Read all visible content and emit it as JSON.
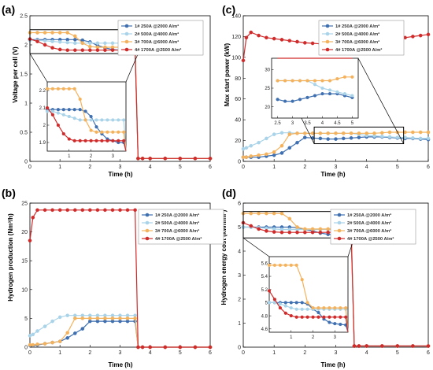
{
  "panels": [
    {
      "letter": "(a)",
      "xlabel": "Time (h)",
      "ylabel": "Voltage per cell  (V)"
    },
    {
      "letter": "(c)",
      "xlabel": "Time (h)",
      "ylabel": "Max start power (kW)"
    },
    {
      "letter": "(b)",
      "xlabel": "Time (h)",
      "ylabel": "Hydrogen production (Nm³/h)"
    },
    {
      "letter": "(d)",
      "xlabel": "Time (h)",
      "ylabel": "Hydrogen energy cost (kWh/m³)"
    }
  ],
  "legend": [
    {
      "label": "1# 250A @2000 A/m²",
      "color": "#3e6fb0"
    },
    {
      "label": "2# 500A @4000 A/m²",
      "color": "#a9d3e8"
    },
    {
      "label": "3# 700A @6000 A/m²",
      "color": "#f5b25c"
    },
    {
      "label": "4# 1700A @2500 A/m²",
      "color": "#d12a2a"
    }
  ],
  "chart_data": [
    {
      "type": "line",
      "panel": "a",
      "xlabel": "Time (h)",
      "ylabel": "Voltage per cell  (V)",
      "xlim": [
        0,
        6
      ],
      "ylim": [
        0,
        2.5
      ],
      "xticks": [
        0,
        1,
        2,
        3,
        4,
        5,
        6
      ],
      "yticks": [
        0,
        0.5,
        1,
        1.5,
        2,
        2.5
      ],
      "x": [
        0,
        0.25,
        0.5,
        0.75,
        1,
        1.25,
        1.5,
        1.75,
        2,
        2.25,
        2.5,
        2.75,
        3,
        3.25,
        3.5,
        3.6,
        3.75,
        4,
        4.5,
        5,
        5.5,
        6
      ],
      "series": [
        {
          "name": "1# 250A @2000 A/m²",
          "values": [
            2.09,
            2.09,
            2.09,
            2.09,
            2.09,
            2.09,
            2.09,
            2.08,
            2.05,
            1.99,
            1.95,
            1.92,
            1.91,
            1.9,
            1.9,
            0.05,
            0.05,
            0.05,
            0.05,
            0.05,
            0.05,
            0.05
          ]
        },
        {
          "name": "2# 500A @4000 A/m²",
          "values": [
            2.08,
            2.08,
            2.07,
            2.06,
            2.05,
            2.04,
            2.03,
            2.03,
            2.03,
            2.03,
            2.03,
            2.03,
            2.03,
            2.03,
            2.03,
            0.05,
            0.05,
            0.05,
            0.05,
            0.05,
            0.05,
            0.05
          ]
        },
        {
          "name": "3# 700A @6000 A/m²",
          "values": [
            2.21,
            2.21,
            2.21,
            2.21,
            2.21,
            2.21,
            2.15,
            2.03,
            1.97,
            1.96,
            1.96,
            1.96,
            1.96,
            1.96,
            1.96,
            0.05,
            0.05,
            0.05,
            0.05,
            0.05,
            0.05,
            0.05
          ]
        },
        {
          "name": "4# 1700A @2500 A/m²",
          "values": [
            2.1,
            2.06,
            2.0,
            1.95,
            1.92,
            1.91,
            1.91,
            1.91,
            1.91,
            1.91,
            1.91,
            1.91,
            1.91,
            1.91,
            1.91,
            0.05,
            0.05,
            0.05,
            0.05,
            0.05,
            0.05,
            0.05
          ]
        }
      ],
      "inset": {
        "xlim": [
          0,
          3.6
        ],
        "ylim": [
          1.85,
          2.25
        ],
        "xticks": [
          1,
          2,
          3
        ],
        "yticks": [
          1.9,
          2,
          2.1,
          2.2
        ]
      }
    },
    {
      "type": "line",
      "panel": "c",
      "xlabel": "Time (h)",
      "ylabel": "Max start power (kW)",
      "xlim": [
        0,
        6
      ],
      "ylim": [
        0,
        140
      ],
      "xticks": [
        0,
        1,
        2,
        3,
        4,
        5,
        6
      ],
      "yticks": [
        0,
        20,
        40,
        60,
        80,
        100,
        120,
        140
      ],
      "x": [
        0,
        0.1,
        0.25,
        0.5,
        0.75,
        1,
        1.25,
        1.5,
        1.75,
        2,
        2.25,
        2.5,
        2.75,
        3,
        3.25,
        3.5,
        3.75,
        4,
        4.25,
        4.5,
        4.75,
        5,
        5.25,
        5.5,
        5.75,
        6
      ],
      "series": [
        {
          "name": "1# 250A @2000 A/m²",
          "values": [
            4,
            4,
            4,
            4,
            5,
            6,
            8,
            13,
            18,
            23,
            22.5,
            22,
            21.5,
            21.5,
            22,
            22.5,
            23,
            23.5,
            23.5,
            23.5,
            23,
            22.5,
            22,
            22,
            21.5,
            21
          ]
        },
        {
          "name": "2# 500A @4000 A/m²",
          "values": [
            12,
            13,
            15,
            18,
            22,
            26,
            27.5,
            27.5,
            27,
            27,
            27,
            27,
            27,
            27,
            27,
            27,
            26,
            25,
            24.5,
            24,
            23.5,
            23,
            23,
            22.5,
            22,
            22
          ]
        },
        {
          "name": "3# 700A @6000 A/m²",
          "values": [
            4,
            4,
            5,
            6,
            7,
            9,
            15,
            26,
            27,
            27,
            27,
            27,
            27,
            27,
            27,
            27,
            27,
            27,
            27,
            27.5,
            28,
            28,
            28,
            28,
            28,
            28
          ]
        },
        {
          "name": "4# 1700A @2500 A/m²",
          "values": [
            97,
            119,
            124,
            121,
            119,
            118,
            117,
            116,
            115,
            114,
            113.5,
            113,
            113,
            113,
            113,
            113,
            113.5,
            114,
            115,
            116,
            117,
            118,
            119,
            120,
            121,
            122
          ]
        }
      ],
      "inset": {
        "xlim": [
          2.3,
          5.2
        ],
        "ylim": [
          17,
          33
        ],
        "xticks": [
          2.5,
          3,
          3.5,
          4,
          4.5,
          5
        ],
        "yticks": [
          20,
          25,
          30
        ]
      }
    },
    {
      "type": "line",
      "panel": "b",
      "xlabel": "Time (h)",
      "ylabel": "Hydrogen production (Nm³/h)",
      "xlim": [
        0,
        6
      ],
      "ylim": [
        0,
        25
      ],
      "xticks": [
        0,
        1,
        2,
        3,
        4,
        5,
        6
      ],
      "yticks": [
        0,
        5,
        10,
        15,
        20,
        25
      ],
      "x": [
        0,
        0.1,
        0.25,
        0.5,
        0.75,
        1,
        1.25,
        1.5,
        1.75,
        2,
        2.25,
        2.5,
        2.75,
        3,
        3.25,
        3.5,
        3.6,
        3.75,
        4,
        4.5,
        5,
        5.5,
        6
      ],
      "series": [
        {
          "name": "1# 250A @2000 A/m²",
          "values": [
            0.3,
            0.3,
            0.4,
            0.6,
            0.8,
            1.0,
            1.6,
            2.4,
            3.2,
            4.5,
            4.5,
            4.5,
            4.5,
            4.5,
            4.5,
            4.5,
            0,
            0,
            0,
            0,
            0,
            0,
            0
          ]
        },
        {
          "name": "2# 500A @4000 A/m²",
          "values": [
            2.0,
            2.2,
            2.8,
            3.6,
            4.5,
            5.2,
            5.5,
            5.5,
            5.5,
            5.5,
            5.5,
            5.5,
            5.5,
            5.5,
            5.5,
            5.5,
            0,
            0,
            0,
            0,
            0,
            0,
            0
          ]
        },
        {
          "name": "3# 700A @6000 A/m²",
          "values": [
            0.4,
            0.4,
            0.5,
            0.6,
            0.8,
            1.0,
            2.5,
            5.0,
            5.0,
            5.0,
            5.0,
            5.0,
            5.0,
            5.0,
            5.0,
            5.0,
            0,
            0,
            0,
            0,
            0,
            0,
            0
          ]
        },
        {
          "name": "4# 1700A @2500 A/m²",
          "values": [
            18.5,
            22.5,
            23.8,
            23.8,
            23.8,
            23.8,
            23.8,
            23.8,
            23.8,
            23.8,
            23.8,
            23.8,
            23.8,
            23.8,
            23.8,
            23.8,
            0,
            0,
            0,
            0,
            0,
            0,
            0
          ]
        }
      ]
    },
    {
      "type": "line",
      "panel": "d",
      "xlabel": "Time (h)",
      "ylabel": "Hydrogen energy cost (kWh/m³)",
      "xlim": [
        0,
        6
      ],
      "ylim": [
        0,
        6
      ],
      "xticks": [
        0,
        1,
        2,
        3,
        4,
        5,
        6
      ],
      "yticks": [
        0,
        1,
        2,
        3,
        4,
        5,
        6
      ],
      "x": [
        0,
        0.25,
        0.5,
        0.75,
        1,
        1.25,
        1.5,
        1.75,
        2,
        2.25,
        2.5,
        2.75,
        3,
        3.25,
        3.5,
        3.6,
        3.75,
        4,
        4.5,
        5,
        5.5,
        6
      ],
      "series": [
        {
          "name": "1# 250A @2000 A/m²",
          "values": [
            5.0,
            5.0,
            5.0,
            5.0,
            5.0,
            5.0,
            5.0,
            4.98,
            4.9,
            4.85,
            4.75,
            4.7,
            4.68,
            4.67,
            4.66,
            0.05,
            0.05,
            0.05,
            0.05,
            0.05,
            0.05,
            0.05
          ]
        },
        {
          "name": "2# 500A @4000 A/m²",
          "values": [
            5.0,
            5.0,
            4.98,
            4.95,
            4.92,
            4.9,
            4.9,
            4.9,
            4.9,
            4.9,
            4.9,
            4.9,
            4.9,
            4.9,
            4.9,
            0.05,
            0.05,
            0.05,
            0.05,
            0.05,
            0.05,
            0.05
          ]
        },
        {
          "name": "3# 700A @6000 A/m²",
          "values": [
            5.57,
            5.57,
            5.57,
            5.57,
            5.57,
            5.57,
            5.35,
            5.0,
            4.92,
            4.92,
            4.92,
            4.92,
            4.92,
            4.92,
            4.92,
            0.05,
            0.05,
            0.05,
            0.05,
            0.05,
            0.05,
            0.05
          ]
        },
        {
          "name": "4# 1700A @2500 A/m²",
          "values": [
            5.18,
            5.05,
            4.92,
            4.84,
            4.8,
            4.78,
            4.78,
            4.78,
            4.78,
            4.78,
            4.78,
            4.78,
            4.78,
            4.78,
            4.78,
            0.05,
            0.05,
            0.05,
            0.05,
            0.05,
            0.05,
            0.05
          ]
        }
      ],
      "inset": {
        "xlim": [
          0,
          3.6
        ],
        "ylim": [
          4.55,
          5.7
        ],
        "xticks": [
          1,
          2,
          3
        ],
        "yticks": [
          4.6,
          4.8,
          5,
          5.2,
          5.4,
          5.6
        ]
      }
    }
  ]
}
